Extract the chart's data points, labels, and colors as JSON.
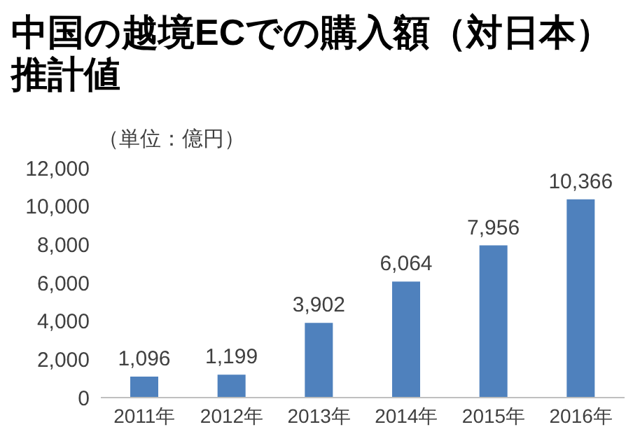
{
  "chart_data": {
    "type": "bar",
    "title": "中国の越境ECでの購入額（対日本）推計値",
    "annotations": [
      "（単位：億円）"
    ],
    "categories": [
      "2011年",
      "2012年",
      "2013年",
      "2014年",
      "2015年",
      "2016年"
    ],
    "values": [
      1096,
      1199,
      3902,
      6064,
      7956,
      10366
    ],
    "color": "#4f81bd",
    "value_labels": [
      "1,096",
      "1,199",
      "3,902",
      "6,064",
      "7,956",
      "10,366"
    ],
    "ylim": [
      0,
      12000
    ],
    "yticks": [
      0,
      {
        "value": 2000,
        "label": "2,000"
      },
      {
        "value": 4000,
        "label": "4,000"
      },
      {
        "value": 6000,
        "label": "6,000"
      },
      {
        "value": 8000,
        "label": "8,000"
      },
      {
        "value": 10000,
        "label": "10,000"
      },
      {
        "value": 12000,
        "label": "12,000"
      }
    ],
    "grid": false,
    "legend": false
  }
}
